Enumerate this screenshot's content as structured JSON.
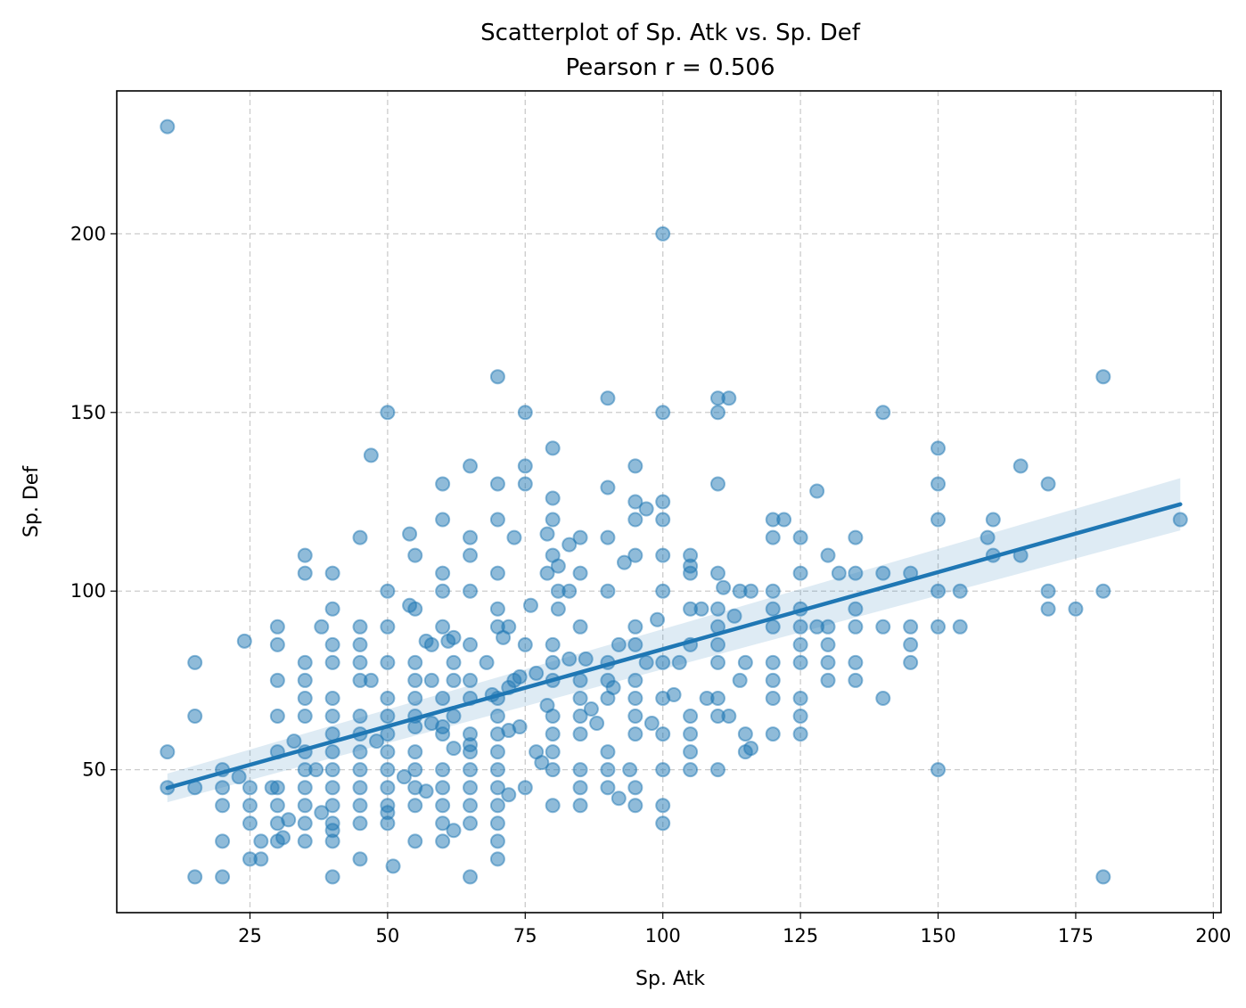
{
  "chart_data": {
    "type": "scatter",
    "title": "Scatterplot of Sp. Atk vs. Sp. Def",
    "subtitle": "Pearson r = 0.506",
    "xlabel": "Sp. Atk",
    "ylabel": "Sp. Def",
    "xlim": [
      0.8,
      201.4
    ],
    "ylim": [
      10,
      240
    ],
    "xticks": [
      25,
      50,
      75,
      100,
      125,
      150,
      175,
      200
    ],
    "yticks": [
      50,
      100,
      150,
      200
    ],
    "grid": true,
    "point_color": "#1f77b4",
    "point_alpha": 0.5,
    "regression": {
      "x": [
        10,
        194
      ],
      "y": [
        44.9,
        124.3
      ],
      "ci_lower": [
        40.9,
        117.0
      ],
      "ci_upper": [
        48.9,
        131.6
      ],
      "color": "#1f77b4"
    },
    "points": [
      [
        10,
        230
      ],
      [
        100,
        200
      ],
      [
        70,
        160
      ],
      [
        180,
        160
      ],
      [
        90,
        154
      ],
      [
        110,
        154
      ],
      [
        112,
        154
      ],
      [
        50,
        150
      ],
      [
        75,
        150
      ],
      [
        100,
        150
      ],
      [
        110,
        150
      ],
      [
        140,
        150
      ],
      [
        80,
        140
      ],
      [
        150,
        140
      ],
      [
        47,
        138
      ],
      [
        65,
        135
      ],
      [
        75,
        135
      ],
      [
        95,
        135
      ],
      [
        165,
        135
      ],
      [
        60,
        130
      ],
      [
        70,
        130
      ],
      [
        75,
        130
      ],
      [
        110,
        130
      ],
      [
        150,
        130
      ],
      [
        170,
        130
      ],
      [
        90,
        129
      ],
      [
        128,
        128
      ],
      [
        80,
        126
      ],
      [
        95,
        125
      ],
      [
        100,
        125
      ],
      [
        97,
        123
      ],
      [
        60,
        120
      ],
      [
        70,
        120
      ],
      [
        80,
        120
      ],
      [
        95,
        120
      ],
      [
        100,
        120
      ],
      [
        120,
        120
      ],
      [
        122,
        120
      ],
      [
        150,
        120
      ],
      [
        160,
        120
      ],
      [
        194,
        120
      ],
      [
        79,
        116
      ],
      [
        54,
        116
      ],
      [
        45,
        115
      ],
      [
        65,
        115
      ],
      [
        73,
        115
      ],
      [
        85,
        115
      ],
      [
        90,
        115
      ],
      [
        120,
        115
      ],
      [
        125,
        115
      ],
      [
        135,
        115
      ],
      [
        159,
        115
      ],
      [
        83,
        113
      ],
      [
        35,
        110
      ],
      [
        55,
        110
      ],
      [
        65,
        110
      ],
      [
        80,
        110
      ],
      [
        95,
        110
      ],
      [
        100,
        110
      ],
      [
        105,
        110
      ],
      [
        130,
        110
      ],
      [
        160,
        110
      ],
      [
        165,
        110
      ],
      [
        93,
        108
      ],
      [
        81,
        107
      ],
      [
        105,
        107
      ],
      [
        105,
        105
      ],
      [
        35,
        105
      ],
      [
        40,
        105
      ],
      [
        60,
        105
      ],
      [
        70,
        105
      ],
      [
        79,
        105
      ],
      [
        85,
        105
      ],
      [
        110,
        105
      ],
      [
        125,
        105
      ],
      [
        132,
        105
      ],
      [
        135,
        105
      ],
      [
        140,
        105
      ],
      [
        145,
        105
      ],
      [
        111,
        101
      ],
      [
        50,
        100
      ],
      [
        60,
        100
      ],
      [
        65,
        100
      ],
      [
        81,
        100
      ],
      [
        83,
        100
      ],
      [
        90,
        100
      ],
      [
        100,
        100
      ],
      [
        114,
        100
      ],
      [
        116,
        100
      ],
      [
        120,
        100
      ],
      [
        150,
        100
      ],
      [
        154,
        100
      ],
      [
        170,
        100
      ],
      [
        180,
        100
      ],
      [
        76,
        96
      ],
      [
        54,
        96
      ],
      [
        55,
        95
      ],
      [
        40,
        95
      ],
      [
        70,
        95
      ],
      [
        105,
        95
      ],
      [
        107,
        95
      ],
      [
        110,
        95
      ],
      [
        120,
        95
      ],
      [
        125,
        95
      ],
      [
        135,
        95
      ],
      [
        170,
        95
      ],
      [
        175,
        95
      ],
      [
        81,
        95
      ],
      [
        99,
        92
      ],
      [
        30,
        90
      ],
      [
        38,
        90
      ],
      [
        45,
        90
      ],
      [
        50,
        90
      ],
      [
        60,
        90
      ],
      [
        70,
        90
      ],
      [
        72,
        90
      ],
      [
        85,
        90
      ],
      [
        95,
        90
      ],
      [
        110,
        90
      ],
      [
        120,
        90
      ],
      [
        125,
        90
      ],
      [
        128,
        90
      ],
      [
        130,
        90
      ],
      [
        135,
        90
      ],
      [
        140,
        90
      ],
      [
        145,
        90
      ],
      [
        150,
        90
      ],
      [
        154,
        90
      ],
      [
        113,
        93
      ],
      [
        57,
        86
      ],
      [
        61,
        86
      ],
      [
        24,
        86
      ],
      [
        30,
        85
      ],
      [
        40,
        85
      ],
      [
        45,
        85
      ],
      [
        58,
        85
      ],
      [
        65,
        85
      ],
      [
        75,
        85
      ],
      [
        80,
        85
      ],
      [
        92,
        85
      ],
      [
        95,
        85
      ],
      [
        105,
        85
      ],
      [
        110,
        85
      ],
      [
        125,
        85
      ],
      [
        130,
        85
      ],
      [
        145,
        85
      ],
      [
        62,
        87
      ],
      [
        71,
        87
      ],
      [
        35,
        80
      ],
      [
        40,
        80
      ],
      [
        45,
        80
      ],
      [
        50,
        80
      ],
      [
        55,
        80
      ],
      [
        62,
        80
      ],
      [
        68,
        80
      ],
      [
        80,
        80
      ],
      [
        90,
        80
      ],
      [
        97,
        80
      ],
      [
        100,
        80
      ],
      [
        103,
        80
      ],
      [
        110,
        80
      ],
      [
        115,
        80
      ],
      [
        120,
        80
      ],
      [
        125,
        80
      ],
      [
        130,
        80
      ],
      [
        135,
        80
      ],
      [
        145,
        80
      ],
      [
        15,
        80
      ],
      [
        83,
        81
      ],
      [
        86,
        81
      ],
      [
        77,
        77
      ],
      [
        74,
        76
      ],
      [
        47,
        75
      ],
      [
        35,
        75
      ],
      [
        30,
        75
      ],
      [
        45,
        75
      ],
      [
        55,
        75
      ],
      [
        58,
        75
      ],
      [
        62,
        75
      ],
      [
        65,
        75
      ],
      [
        73,
        75
      ],
      [
        80,
        75
      ],
      [
        85,
        75
      ],
      [
        95,
        75
      ],
      [
        114,
        75
      ],
      [
        120,
        75
      ],
      [
        130,
        75
      ],
      [
        135,
        75
      ],
      [
        90,
        75
      ],
      [
        72,
        73
      ],
      [
        91,
        73
      ],
      [
        35,
        70
      ],
      [
        40,
        70
      ],
      [
        50,
        70
      ],
      [
        55,
        70
      ],
      [
        60,
        70
      ],
      [
        65,
        70
      ],
      [
        70,
        70
      ],
      [
        85,
        70
      ],
      [
        90,
        70
      ],
      [
        95,
        70
      ],
      [
        108,
        70
      ],
      [
        110,
        70
      ],
      [
        120,
        70
      ],
      [
        125,
        70
      ],
      [
        140,
        70
      ],
      [
        100,
        70
      ],
      [
        69,
        71
      ],
      [
        102,
        71
      ],
      [
        79,
        68
      ],
      [
        87,
        67
      ],
      [
        30,
        65
      ],
      [
        35,
        65
      ],
      [
        40,
        65
      ],
      [
        45,
        65
      ],
      [
        50,
        65
      ],
      [
        55,
        65
      ],
      [
        62,
        65
      ],
      [
        70,
        65
      ],
      [
        80,
        65
      ],
      [
        85,
        65
      ],
      [
        95,
        65
      ],
      [
        105,
        65
      ],
      [
        110,
        65
      ],
      [
        125,
        65
      ],
      [
        15,
        65
      ],
      [
        112,
        65
      ],
      [
        58,
        63
      ],
      [
        88,
        63
      ],
      [
        98,
        63
      ],
      [
        74,
        62
      ],
      [
        40,
        60
      ],
      [
        45,
        60
      ],
      [
        50,
        60
      ],
      [
        60,
        60
      ],
      [
        65,
        60
      ],
      [
        70,
        60
      ],
      [
        80,
        60
      ],
      [
        85,
        60
      ],
      [
        95,
        60
      ],
      [
        100,
        60
      ],
      [
        105,
        60
      ],
      [
        115,
        60
      ],
      [
        120,
        60
      ],
      [
        125,
        60
      ],
      [
        55,
        62
      ],
      [
        60,
        62
      ],
      [
        72,
        61
      ],
      [
        33,
        58
      ],
      [
        48,
        58
      ],
      [
        65,
        57
      ],
      [
        10,
        55
      ],
      [
        30,
        55
      ],
      [
        35,
        55
      ],
      [
        40,
        55
      ],
      [
        45,
        55
      ],
      [
        50,
        55
      ],
      [
        55,
        55
      ],
      [
        65,
        55
      ],
      [
        70,
        55
      ],
      [
        80,
        55
      ],
      [
        90,
        55
      ],
      [
        105,
        55
      ],
      [
        115,
        55
      ],
      [
        116,
        56
      ],
      [
        77,
        55
      ],
      [
        62,
        56
      ],
      [
        20,
        50
      ],
      [
        35,
        50
      ],
      [
        37,
        50
      ],
      [
        40,
        50
      ],
      [
        45,
        50
      ],
      [
        50,
        50
      ],
      [
        55,
        50
      ],
      [
        60,
        50
      ],
      [
        65,
        50
      ],
      [
        70,
        50
      ],
      [
        80,
        50
      ],
      [
        85,
        50
      ],
      [
        90,
        50
      ],
      [
        94,
        50
      ],
      [
        100,
        50
      ],
      [
        105,
        50
      ],
      [
        110,
        50
      ],
      [
        150,
        50
      ],
      [
        78,
        52
      ],
      [
        23,
        48
      ],
      [
        53,
        48
      ],
      [
        10,
        45
      ],
      [
        15,
        45
      ],
      [
        20,
        45
      ],
      [
        25,
        45
      ],
      [
        29,
        45
      ],
      [
        30,
        45
      ],
      [
        35,
        45
      ],
      [
        40,
        45
      ],
      [
        45,
        45
      ],
      [
        50,
        45
      ],
      [
        55,
        45
      ],
      [
        60,
        45
      ],
      [
        65,
        45
      ],
      [
        70,
        45
      ],
      [
        75,
        45
      ],
      [
        85,
        45
      ],
      [
        90,
        45
      ],
      [
        95,
        45
      ],
      [
        57,
        44
      ],
      [
        72,
        43
      ],
      [
        92,
        42
      ],
      [
        20,
        40
      ],
      [
        25,
        40
      ],
      [
        30,
        40
      ],
      [
        35,
        40
      ],
      [
        40,
        40
      ],
      [
        45,
        40
      ],
      [
        50,
        40
      ],
      [
        55,
        40
      ],
      [
        60,
        40
      ],
      [
        65,
        40
      ],
      [
        70,
        40
      ],
      [
        80,
        40
      ],
      [
        85,
        40
      ],
      [
        95,
        40
      ],
      [
        100,
        40
      ],
      [
        25,
        35
      ],
      [
        30,
        35
      ],
      [
        32,
        36
      ],
      [
        35,
        35
      ],
      [
        40,
        35
      ],
      [
        45,
        35
      ],
      [
        50,
        35
      ],
      [
        60,
        35
      ],
      [
        65,
        35
      ],
      [
        70,
        35
      ],
      [
        100,
        35
      ],
      [
        38,
        38
      ],
      [
        50,
        38
      ],
      [
        62,
        33
      ],
      [
        40,
        33
      ],
      [
        20,
        30
      ],
      [
        27,
        30
      ],
      [
        30,
        30
      ],
      [
        35,
        30
      ],
      [
        40,
        30
      ],
      [
        55,
        30
      ],
      [
        60,
        30
      ],
      [
        70,
        30
      ],
      [
        31,
        31
      ],
      [
        25,
        25
      ],
      [
        27,
        25
      ],
      [
        45,
        25
      ],
      [
        70,
        25
      ],
      [
        51,
        23
      ],
      [
        15,
        20
      ],
      [
        20,
        20
      ],
      [
        40,
        20
      ],
      [
        65,
        20
      ],
      [
        180,
        20
      ]
    ]
  }
}
